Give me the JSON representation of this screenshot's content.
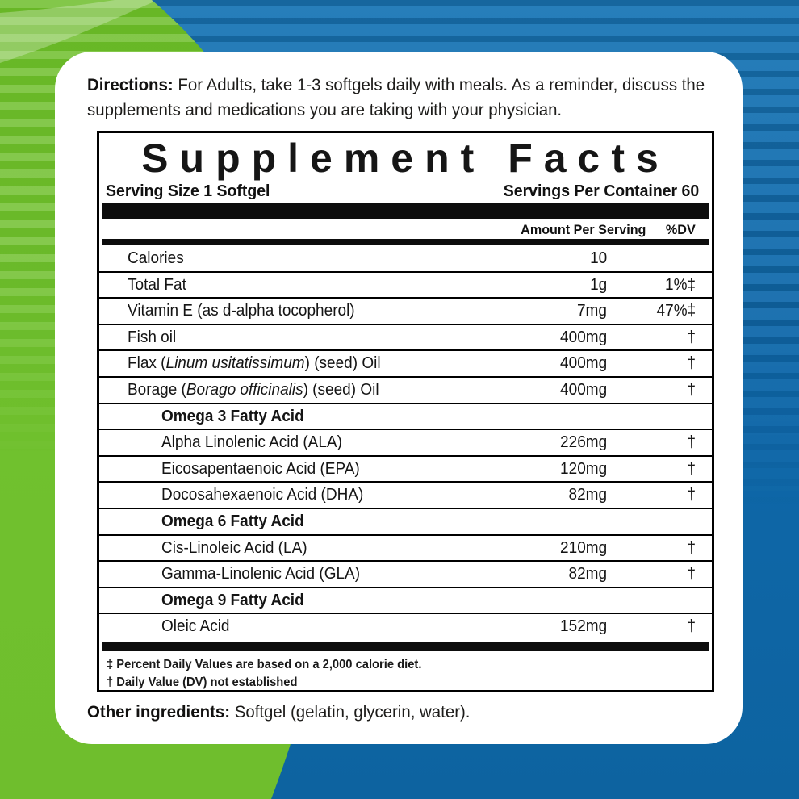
{
  "background": {
    "green_color": "#6fc02c",
    "blue_color": "#0f68aa",
    "card_color": "#ffffff"
  },
  "directions": {
    "label": "Directions:",
    "line1": "For Adults, take 1-3 softgels daily with meals. As a reminder, discuss the",
    "line2": "supplements and medications you are taking with your physician."
  },
  "supplement_facts": {
    "title": "Supplement Facts",
    "serving_size": "Serving Size 1 Softgel",
    "servings_per_container": "Servings Per Container  60",
    "columns": {
      "amount": "Amount Per Serving",
      "dv": "%DV"
    },
    "rows": [
      {
        "indent": "l1",
        "label": "Calories",
        "amount": "10",
        "dv": ""
      },
      {
        "indent": "l1",
        "label": "Total Fat",
        "amount": "1g",
        "dv": "1%‡"
      },
      {
        "indent": "l1",
        "label": "Vitamin E (as d-alpha tocopherol)",
        "amount": "7mg",
        "dv": "47%‡"
      },
      {
        "indent": "l1",
        "label": "Fish oil",
        "amount": "400mg",
        "dv": "†"
      },
      {
        "indent": "l1",
        "label_pre": "Flax (",
        "label_italic": "Linum usitatissimum",
        "label_post": ") (seed) Oil",
        "amount": "400mg",
        "dv": "†"
      },
      {
        "indent": "l1",
        "label_pre": "Borage (",
        "label_italic": "Borago officinalis",
        "label_post": ") (seed) Oil",
        "amount": "400mg",
        "dv": "†"
      },
      {
        "indent": "header",
        "label": "Omega 3 Fatty Acid",
        "amount": "",
        "dv": ""
      },
      {
        "indent": "l2",
        "label": "Alpha Linolenic Acid (ALA)",
        "amount": "226mg",
        "dv": "†"
      },
      {
        "indent": "l2",
        "label": "Eicosapentaenoic Acid (EPA)",
        "amount": "120mg",
        "dv": "†"
      },
      {
        "indent": "l2",
        "label": "Docosahexaenoic Acid (DHA)",
        "amount": "82mg",
        "dv": "†"
      },
      {
        "indent": "header",
        "label": "Omega 6 Fatty Acid",
        "amount": "",
        "dv": ""
      },
      {
        "indent": "l2",
        "label": "Cis-Linoleic Acid (LA)",
        "amount": "210mg",
        "dv": "†"
      },
      {
        "indent": "l2",
        "label": "Gamma-Linolenic Acid (GLA)",
        "amount": "82mg",
        "dv": "†"
      },
      {
        "indent": "header",
        "label": "Omega 9 Fatty Acid",
        "amount": "",
        "dv": ""
      },
      {
        "indent": "l2",
        "label": "Oleic Acid",
        "amount": "152mg",
        "dv": "†"
      }
    ],
    "footnotes": [
      "‡ Percent Daily Values are based on a 2,000 calorie diet.",
      "† Daily Value (DV) not established"
    ]
  },
  "other_ingredients": {
    "label": "Other ingredients:",
    "text": "Softgel (gelatin, glycerin, water)."
  }
}
